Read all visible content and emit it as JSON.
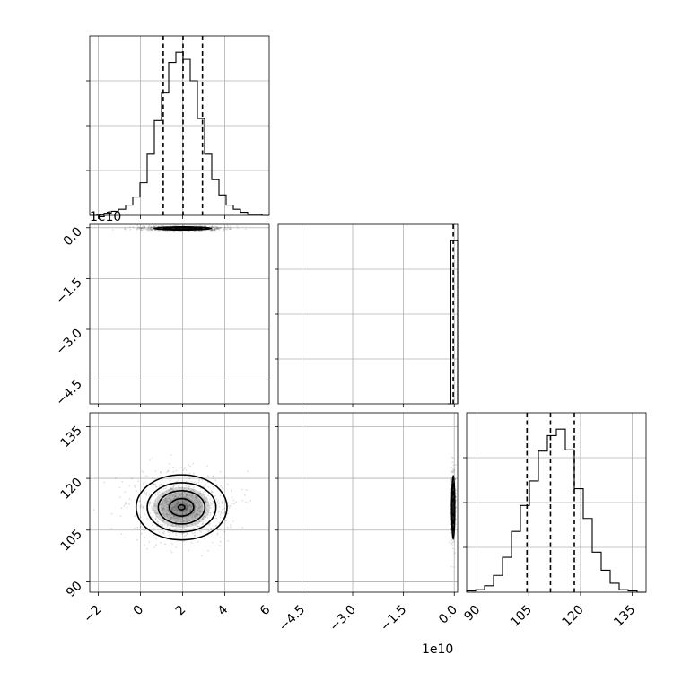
{
  "chart_data": {
    "type": "corner",
    "offset_labels": {
      "row1_y": "1e10",
      "col1_x": "1e10"
    },
    "params": [
      {
        "range": [
          -2.4,
          6.1
        ],
        "ticks": [
          -2,
          0,
          2,
          4,
          6
        ],
        "tick_labels": [
          "−2",
          "0",
          "2",
          "4",
          "6"
        ],
        "quantiles": [
          1.08,
          2.02,
          2.94
        ],
        "hist": {
          "edges": [
            -2.4,
            -2.06,
            -1.72,
            -1.38,
            -1.04,
            -0.7,
            -0.36,
            -0.02,
            0.32,
            0.66,
            1.0,
            1.34,
            1.68,
            2.02,
            2.36,
            2.7,
            3.04,
            3.38,
            3.72,
            4.06,
            4.4,
            4.74,
            5.08,
            5.42,
            5.76,
            6.1
          ],
          "counts": [
            0,
            1,
            2,
            4,
            6,
            10,
            18,
            32,
            60,
            93,
            120,
            150,
            160,
            153,
            132,
            95,
            60,
            35,
            20,
            10,
            6,
            3,
            1,
            1,
            0
          ]
        }
      },
      {
        "range": [
          -5.2,
          0.1
        ],
        "ticks": [
          0.0,
          -1.5,
          -3.0,
          -4.5
        ],
        "tick_labels": [
          "0.0",
          "−1.5",
          "−3.0",
          "−4.5"
        ],
        "quantiles": [
          -0.03
        ],
        "hist": {
          "edges": [
            -0.2,
            -0.1,
            0.0,
            0.1
          ],
          "counts": [
            0,
            100,
            100
          ]
        }
      },
      {
        "range": [
          87,
          139
        ],
        "ticks": [
          90,
          105,
          120,
          135
        ],
        "tick_labels": [
          "90",
          "105",
          "120",
          "135"
        ],
        "quantiles": [
          104.5,
          111.3,
          118.2
        ],
        "hist": {
          "edges": [
            87,
            89.6,
            92.2,
            94.8,
            97.4,
            100,
            102.6,
            105.2,
            107.8,
            110.4,
            113,
            115.6,
            118.2,
            120.8,
            123.4,
            126,
            128.6,
            131.2,
            133.8,
            136.4,
            139
          ],
          "counts": [
            1,
            2,
            5,
            13,
            27,
            47,
            67,
            86,
            109,
            121,
            126,
            110,
            80,
            57,
            31,
            17,
            7,
            2,
            1,
            0
          ]
        }
      }
    ],
    "pair_panels": [
      {
        "x_param": 0,
        "y_param": 1,
        "center": [
          2.0,
          -0.02
        ],
        "sigma": [
          0.9,
          0.02
        ],
        "contour_levels": [
          0.4,
          0.7,
          1.0,
          1.5
        ]
      },
      {
        "x_param": 0,
        "y_param": 2,
        "center": [
          1.95,
          111.6
        ],
        "sigma": [
          1.05,
          4.6
        ],
        "contour_levels": [
          0.15,
          0.55,
          1.05,
          1.55,
          2.05
        ]
      },
      {
        "x_param": 1,
        "y_param": 2,
        "center": [
          -0.03,
          111.6
        ],
        "sigma": [
          0.02,
          4.6
        ],
        "contour_levels": [
          0.5,
          1.0,
          1.5,
          2.0
        ]
      }
    ]
  }
}
